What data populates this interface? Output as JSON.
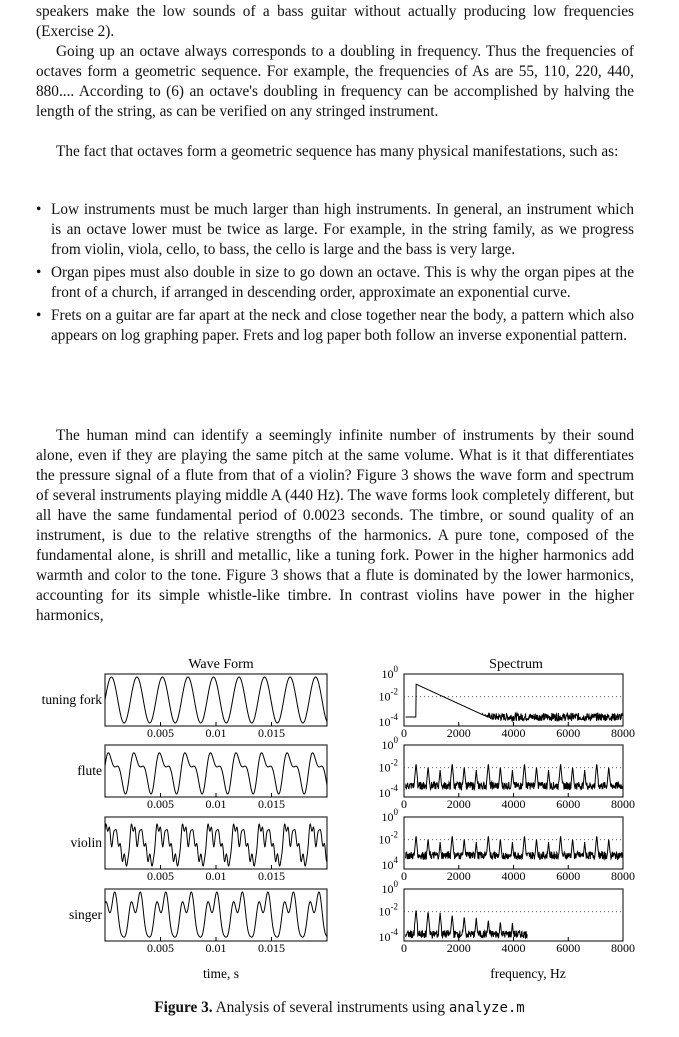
{
  "paragraphs": {
    "p0": "speakers make the low sounds of a bass guitar without actually producing low frequencies (Exercise 2).",
    "p1": "Going up an octave always corresponds to a doubling in frequency. Thus the frequencies of octaves form a geometric sequence. For example, the frequencies of As are 55, 110, 220, 440, 880.... According to (6) an octave's doubling in frequency can be accomplished by halving the length of the string, as can be verified on any stringed instrument.",
    "p2": "The fact that octaves form a geometric sequence has many physical manifestations, such as:",
    "p3": "The human mind can identify a seemingly infinite number of instruments by their sound alone, even if they are playing the same pitch at the same volume. What is it that differentiates the pressure signal of a flute from that of a violin? Figure 3 shows the wave form and spectrum of several instruments playing middle A (440 Hz). The wave forms look completely different, but all have the same fundamental period of 0.0023 seconds. The timbre, or sound quality of an instrument, is due to the relative strengths of the harmonics. A pure tone, composed of the fundamental alone, is shrill and metallic, like a tuning fork. Power in the higher harmonics add warmth and color to the tone. Figure 3 shows that a flute is dominated by the lower harmonics, accounting for its simple whistle-like timbre. In contrast violins have power in the higher harmonics,"
  },
  "bullets": [
    "Low instruments must be much larger than high instruments. In general, an instrument which is an octave lower must be twice as large. For example, in the string family, as we progress from violin, viola, cello, to bass, the cello is large and the bass is very large.",
    "Organ pipes must also double in size to go down an octave. This is why the organ pipes at the front of a church, if arranged in descending order, approximate an exponential curve.",
    "Frets on a guitar are far apart at the neck and close together near the body, a pattern which also appears on log graphing paper. Frets and log paper both follow an inverse exponential pattern."
  ],
  "bullet_glyph": "•",
  "figure": {
    "wave_title": "Wave Form",
    "spectrum_title": "Spectrum",
    "wave_xlabel": "time, s",
    "spectrum_xlabel": "frequency, Hz",
    "caption_label": "Figure 3.",
    "caption_text": "Analysis of several instruments using",
    "caption_code": "analyze.m"
  },
  "chart_data": [
    {
      "type": "line",
      "title": "Wave Form",
      "xlabel": "time, s",
      "ylabel": "",
      "xlim": [
        0,
        0.02
      ],
      "x_ticks": [
        "0.005",
        "0.01",
        "0.015"
      ],
      "fundamental_period_s": 0.0023,
      "series": [
        {
          "name": "tuning fork",
          "shape": "pure-sine"
        },
        {
          "name": "flute",
          "shape": "sine-with-low-harmonics"
        },
        {
          "name": "violin",
          "shape": "rich-harmonics"
        },
        {
          "name": "singer",
          "shape": "mixed-harmonics"
        }
      ]
    },
    {
      "type": "line",
      "title": "Spectrum",
      "xlabel": "frequency, Hz",
      "ylabel": "",
      "yscale": "log",
      "xlim": [
        0,
        8000
      ],
      "x_ticks": [
        "0",
        "2000",
        "4000",
        "6000",
        "8000"
      ],
      "y_ticks": [
        "10^0",
        "10^-2",
        "10^-4"
      ],
      "y_ticks_violin_bottom": "10^4",
      "series": [
        {
          "name": "tuning fork",
          "peaks_hz": [
            440
          ],
          "floor_log10": -3.8
        },
        {
          "name": "flute",
          "peaks_hz": [
            440,
            880,
            1320,
            1760,
            2200,
            2640,
            3080,
            3520,
            3960,
            4400,
            4840,
            5280,
            5720,
            6160,
            6600,
            7040,
            7480
          ],
          "floor_log10": -3.6
        },
        {
          "name": "violin",
          "peaks_hz": [
            440,
            880,
            1320,
            1760,
            2200,
            2640,
            3080,
            3520,
            3960,
            4400,
            4840,
            5280,
            5720,
            6160,
            6600,
            7040,
            7480
          ],
          "floor_log10": -3.4
        },
        {
          "name": "singer",
          "peaks_hz": [
            440,
            880,
            1320,
            1760,
            2200,
            2640,
            3080,
            3520,
            3960
          ],
          "floor_log10": -4.0,
          "cutoff_hz": 4500
        }
      ]
    }
  ]
}
